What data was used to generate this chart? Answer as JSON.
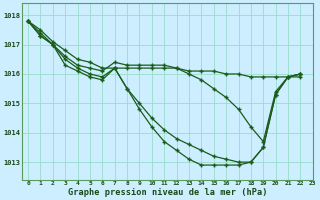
{
  "title": "Graphe pression niveau de la mer (hPa)",
  "background_color": "#cceeff",
  "grid_color": "#99ddcc",
  "line_color": "#1a5c1a",
  "xlim": [
    -0.5,
    23
  ],
  "ylim": [
    1012.4,
    1018.4
  ],
  "yticks": [
    1013,
    1014,
    1015,
    1016,
    1017,
    1018
  ],
  "xticks": [
    0,
    1,
    2,
    3,
    4,
    5,
    6,
    7,
    8,
    9,
    10,
    11,
    12,
    13,
    14,
    15,
    16,
    17,
    18,
    19,
    20,
    21,
    22,
    23
  ],
  "series": [
    {
      "x": [
        0,
        1,
        2,
        3,
        4,
        5,
        6,
        7,
        8,
        9,
        10,
        11,
        12,
        13,
        14,
        15,
        16,
        17,
        18,
        19,
        20,
        21,
        22
      ],
      "y": [
        1017.8,
        1017.5,
        1017.1,
        1016.8,
        1016.5,
        1016.4,
        1016.2,
        1016.2,
        1016.2,
        1016.2,
        1016.2,
        1016.2,
        1016.2,
        1016.1,
        1016.1,
        1016.1,
        1016.0,
        1016.0,
        1015.9,
        1015.9,
        1015.9,
        1015.9,
        1015.9
      ]
    },
    {
      "x": [
        0,
        1,
        2,
        3,
        4,
        5,
        6,
        7,
        8,
        9,
        10,
        11,
        12,
        13,
        14,
        15,
        16,
        17,
        18,
        19,
        20,
        21,
        22
      ],
      "y": [
        1017.8,
        1017.4,
        1017.0,
        1016.6,
        1016.3,
        1016.2,
        1016.1,
        1016.4,
        1016.3,
        1016.3,
        1016.3,
        1016.3,
        1016.2,
        1016.0,
        1015.8,
        1015.5,
        1015.2,
        1014.8,
        1014.2,
        1013.7,
        1015.4,
        1015.9,
        1016.0
      ]
    },
    {
      "x": [
        0,
        1,
        2,
        3,
        4,
        5,
        6,
        7,
        8,
        9,
        10,
        11,
        12,
        13,
        14,
        15,
        16,
        17,
        18,
        19,
        20,
        21,
        22
      ],
      "y": [
        1017.8,
        1017.3,
        1017.0,
        1016.5,
        1016.2,
        1016.0,
        1015.9,
        1016.2,
        1015.5,
        1015.0,
        1014.5,
        1014.1,
        1013.8,
        1013.6,
        1013.4,
        1013.2,
        1013.1,
        1013.0,
        1013.0,
        1013.5,
        1015.3,
        1015.9,
        1016.0
      ]
    },
    {
      "x": [
        0,
        1,
        2,
        3,
        4,
        5,
        6,
        7,
        8,
        9,
        10,
        11,
        12,
        13,
        14,
        15,
        16,
        17,
        18,
        19,
        20,
        21,
        22
      ],
      "y": [
        1017.8,
        1017.3,
        1017.0,
        1016.3,
        1016.1,
        1015.9,
        1015.8,
        1016.2,
        1015.5,
        1014.8,
        1014.2,
        1013.7,
        1013.4,
        1013.1,
        1012.9,
        1012.9,
        1012.9,
        1012.9,
        1013.0,
        1013.5,
        1015.3,
        1015.9,
        1016.0
      ]
    }
  ]
}
